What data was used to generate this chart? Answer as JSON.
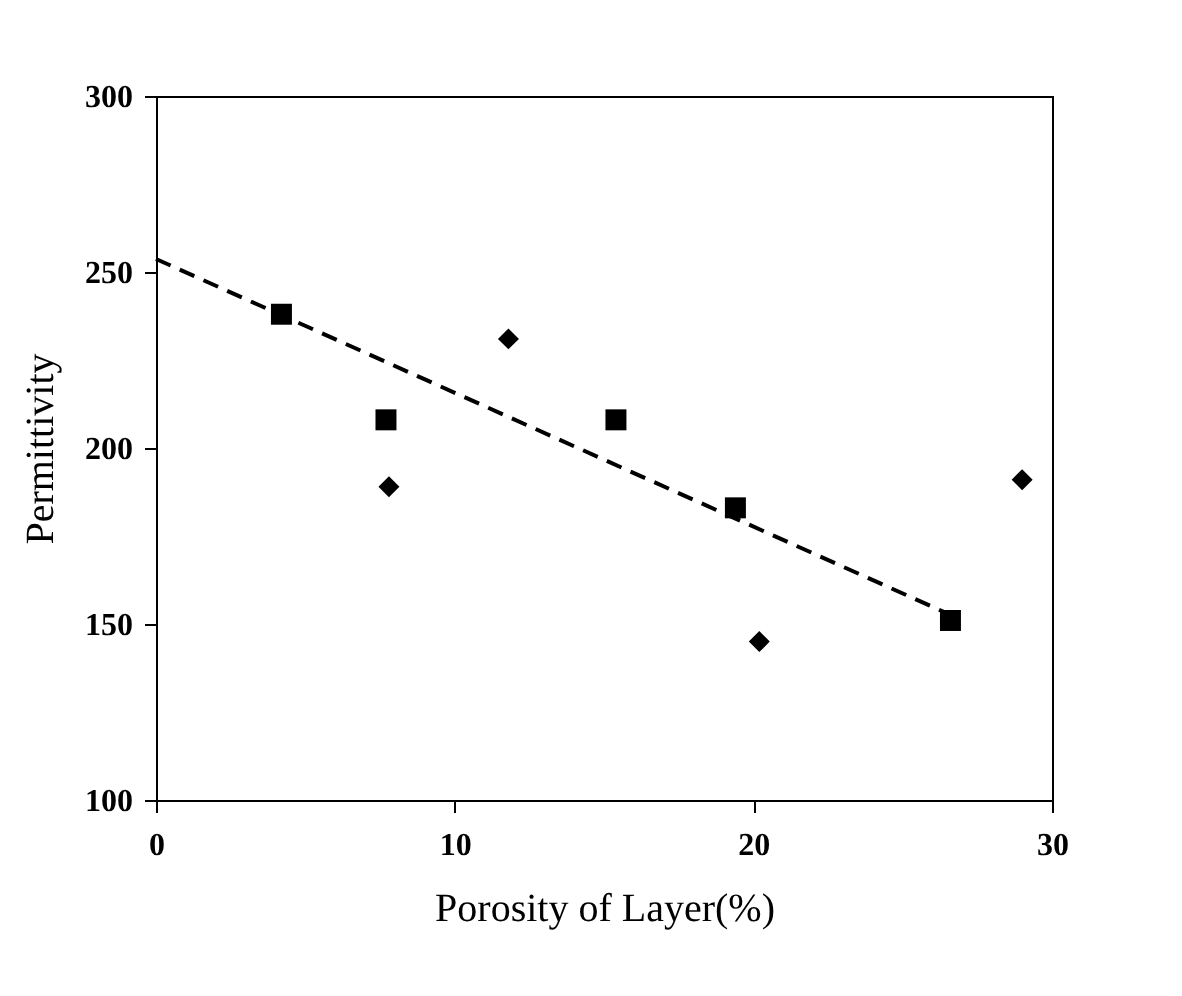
{
  "chart_data": {
    "type": "scatter",
    "xlabel": "Porosity of Layer(%)",
    "ylabel": "Permittivity",
    "xlim": [
      0,
      30
    ],
    "xticks": [
      0,
      10,
      20,
      30
    ],
    "ylim": [
      100,
      300
    ],
    "yticks": [
      100,
      150,
      200,
      250,
      300
    ],
    "grid": false,
    "series": [
      {
        "marker": "square",
        "color": "#000000",
        "x": [
          4.2,
          7.7,
          15.4,
          19.4,
          26.6
        ],
        "values": [
          238,
          208,
          208,
          183,
          151
        ]
      },
      {
        "marker": "diamond",
        "color": "#000000",
        "x": [
          7.8,
          11.8,
          20.2,
          29.0
        ],
        "values": [
          189,
          231,
          145,
          191
        ]
      },
      {
        "type": "line",
        "line_style": "dashed",
        "marker": "none",
        "color": "#000000",
        "x": [
          0,
          26.6
        ],
        "values": [
          253.7,
          152.6
        ]
      }
    ]
  }
}
